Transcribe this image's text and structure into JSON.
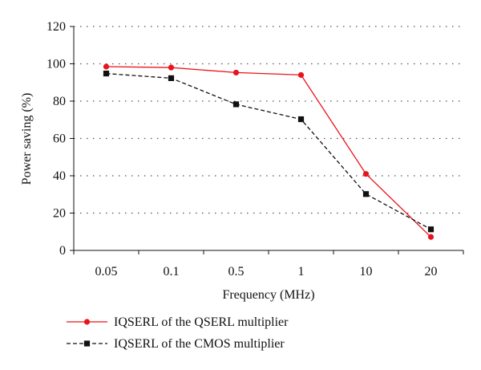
{
  "chart_data": {
    "type": "line",
    "categories": [
      "0.05",
      "0.1",
      "0.5",
      "1",
      "10",
      "20"
    ],
    "series": [
      {
        "name": "IQSERL of the QSERL multiplier",
        "values": [
          98.5,
          98,
          95.3,
          94,
          41,
          7.2
        ],
        "color": "#e8141b",
        "line_style": "solid",
        "marker": "circle"
      },
      {
        "name": "IQSERL of the CMOS multiplier",
        "values": [
          94.8,
          92.3,
          78.3,
          70.3,
          30.2,
          11.3
        ],
        "color": "#111111",
        "line_style": "dashed",
        "marker": "square"
      }
    ],
    "title": "",
    "xlabel": "Frequency (MHz)",
    "ylabel": "Power saving (%)",
    "ylim": [
      0,
      120
    ],
    "yticks": [
      0,
      20,
      40,
      60,
      80,
      100,
      120
    ],
    "grid": "horizontal-dotted",
    "legend_position": "bottom-left"
  }
}
